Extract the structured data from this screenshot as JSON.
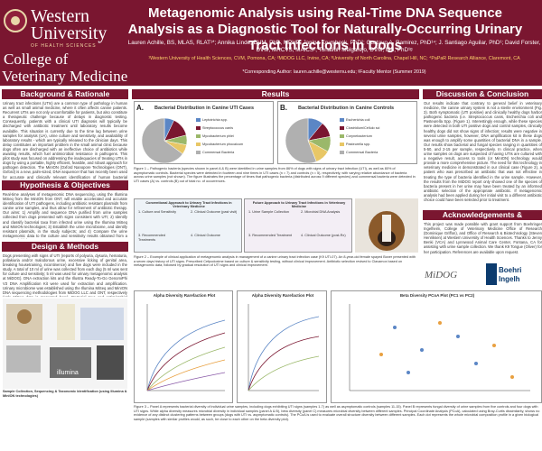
{
  "header": {
    "logo_line1": "Western",
    "logo_line2": "University",
    "logo_sub": "OF HEALTH SCIENCES",
    "college_line1": "College of",
    "college_line2": "Veterinary Medicine",
    "title": "Metagenomic Analysis using Real-Time DNA Sequence Analysis as a Diagnostic Tool for Naturally-Occurring Urinary Tract Infections in Dogs",
    "authors": "Lauren Achille, BS, MLAS, RLAT¹*; Annika Linde, DVM, PhD, MPHP; Janina Krumbeck, PhD²; Gustavo A. Ramirez, PhD¹⁴; J. Santiago Aguilar, PhD¹; David Forster, DVM, MRCVS, MAICS¹; Tonatiuh Melgarejo, DVM, MS, PhD¹ᵍ",
    "affiliations": "¹Western University of Health Sciences, CVM, Pomona, CA; ²MiDOG LLC, Irvine, CA; ³University of North Carolina, Chapel Hill, NC; ⁴PaPaR Research Alliance, Claremont, CA",
    "correspondence": "*Corresponding Author: lauren.achille@westernu.edu; ᵍFaculty Mentor (Summer 2019)"
  },
  "sections": {
    "background_title": "Background & Rationale",
    "background_text": "Urinary tract infections (UTIs) are a common type of pathology in human as well as small animal medicine, where it often affects canine patients. Recurrent UTIs are not only uncomfortable for patients, but also constitute a therapeutic challenge because of delays in diagnostic testing. Consequently, patients with a clinical UTI diagnosis will typically be discharged with antibiotic treatment until laboratory results become available. This situation is currently due to the time lag between urine samples for analysis (UA), urine culture and sensitivity, and availability of laboratory results - which are typically released to the clinician days. This delay constitutes an important problem in the small animal clinic because dogs often are discharged with an ineffective choice of antibiotics while awaiting results, which fuel antimicrobial resistance in pathogens. This pilot study was focused on addressing the inadequacies of treating UTIs in dogs by using a portable, highly efficient, feasible, and robust approach for pathogen detection. The MinION (Oxford Nanopore Technologies (ONT), Oxford) is a new, palm-sized, DNA sequencer that has recently been used for accurate and clinically relevant identification of human bacterial pathogens in less than four hours post urine collection. Consequently, we expect this technology can be translated for use in a veterinary medicine framework. We also used the Illumina MiSeq (MiDOG LLC) to compare microbial analyses data (the poster presents the Illumina MiSeq data only).",
    "hypothesis_title": "Hypothesis & Objectives",
    "hypothesis_text": "Real-time analyses of metagenomic DNA sequencing, using the Illumina MiSeq from the MinION from ONT, will enable accelerated and accurate identification of UTI pathogens, including antibiotic resistant plasmids from canine urine samples, and thus allow for refinement of antibiotic therapy. Our aims: 1) Amplify and sequence DNA purified from urine samples collected from dogs presented with signs consistent with UTI; 2) Identify and classify bacterial taxa from infected urine using the Illumina MiSeq and MinION technologies; 3) Establish the urine microbiome, and identify resistant plasmids, in the study subjects; and 4) Compare the urine metagenomic data to the culture and sensitivity results obtained from a commercial laboratory.",
    "design_title": "Design & Methods",
    "design_text": "Dogs presenting with signs of UTI (reports of polyuria, dysuria, hematuria, pollakiuria and/or malodorous urine, excessive licking of genital area, breaking housetraining, incontinence) and five dogs were included in the study. A total of 10 ml of urine was collected from each dog (5 ml was sent for culture and sensitivity; 5 ml was used for urinary metagenomic analysis at MiDOG). DNA extraction kits and the Illustra Ready-To-Go GenomiPhi V3 DNA Amplification Kit were used for extraction and amplification. Urinary microbiome was established using the Illumina MiSeq and MinION DNA sequencing methodologies from MiDOG LLC and ONT, respectively (only MiSeq data is presented here). Bacterial taxa and antimicrobial resistance plasmids were identified in each urine sample. Data originated from third generation DNA sequencing was also compared with urine culture and sensitivity test results from a commercial diagnostic laboratory.",
    "methods_caption": "Sample Collection, Sequencing & Taxonomic Identification (using Illumina & MinION technologies)",
    "results_title": "Results",
    "discussion_title": "Discussion & Conclusion",
    "discussion_text": "Our results indicate that contrary to general belief in veterinary medicine, the canine urinary system is not a sterile environment (Fig. 3). Both symptomatic (UTI positive) and clinically healthy dogs harbor pathogenic bacteria (i.e. Streptococcus canis, Escherichia coli and Pasteurella Spp. (Figure 1). Interestingly enough, while these species were detected in both UTI positive dogs and control samples, clinically healthy dogs did not show signs of infection; results were negative in several urine samples, however, DNA amplification kit in these dogs was enough to amplify some quantities of bacterial DNA in a sample. Our results show bacterial and fungal species ranging in quantities of 5-50, and 2-15 per sample, respectively. In clinical practice, when urine samples on dogs are suspected of having UTIs are cultured with a negative result, access to tools (or MinION) technology would provide a more comprehensive picture. The need for this technology in veterinary medicine is demonstrated in our clinical case (Figure 2), a patient who was prescribed an antibiotic that was not effective in treating the type of bacteria identified in the urine sample. However, the results from the MiDOG report only showed one of the species of bacteria present in her urine may have been treated by an informed antibiotic selection of the appropriate antibiotic. If metagenomic analysis had been applied during her initial visit to a different antibiotic choice could have been selected prior to treatment.",
    "ack_title": "Acknowledgements & References",
    "ack_text": "This project was made possible with grant support from Boehringer Ingelheim, College of Veterinary Medicine Office of Research (Dominique Griffon), and Office of Research & Biotechnology (Steven Henriksen) at Western University of Health Sciences. Thanks to Jenny Benki (VCA) and Lynnwood Animal Care Center, Fontana, CA for assisting with urine sample collection. We thank K9 Tongue (Oliver) for her participation. References are available upon request."
  },
  "results": {
    "panel_a_letter": "A.",
    "panel_a_title": "Bacterial Distribution in Canine UTI Cases",
    "panel_b_letter": "B.",
    "panel_b_title": "Bacterial Distribution in Canine Controls",
    "figure1_caption": "Figure 1 – Pathogenic bacteria (species shown in panel A & B) were identified in urine samples from 86% of dogs with signs of urinary tract infection (UTI), as well as 80% of asymptomatic controls. Bacterial species were detected in fourteen and nine times in UTI cases (n = 7) and controls (n = 5), respectively, with varying relative abundance of bacteria across urine samples (not shown). The figure illustrates the percentage of times that pathogenic bacteria (distributed across 9 different species) and commensal bacteria were detected in UTI cases (A) vs. controls (B) out of total no. of occurrences.",
    "flow_left_title": "Conventional Approach to Urinary Tract Infections in Veterinary Medicine",
    "flow_right_title": "Future Approach to Urinary Tract Infections in Veterinary Medicine",
    "flow_left_steps": [
      "1. Culture and Sensitivity",
      "2. Clinical Outcome (past visit)",
      "3. Recommended Treatments",
      "4. Clinical Outcome"
    ],
    "flow_right_steps": [
      "1. Urine Sample Collection",
      "2. Microbial DNA Analysis",
      "3. Recommended Treatment",
      "4. Clinical Outcome (post-Rx)"
    ],
    "figure2_caption": "Figure 2 – Example of clinical application of metagenomic analysis in management of a canine urinary tract infection case (K9 UTI-07). An 8-year-old female spayed Boxer presented with a seven days history of UTI signs. Prescribed Cefpodoxime based on culture & sensitivity testing, without clinical improvement. Antibiotic selection revised to Clavamox based on metagenomic data, followed by gradual resolution of UTI signs and clinical improvement.",
    "alpha_title_1": "Alpha Diversity Rarefaction Plot",
    "alpha_title_2": "Alpha Diversity Rarefaction Plot",
    "beta_title": "Beta Diversity PCoA Plot (PC1 vs PC2)",
    "figure3_caption": "Figure 3 – Panel A represents bacterial diversity of individual urine samples, including dogs exhibiting UTI signs (samples 1-7) as well as asymptomatic controls (samples 11-15). Panel B represents fungal diversity of urine samples from five controls and four dogs with UTI signs. While alpha diversity measures microbial diversity in individual samples (panel A & B), beta diversity (panel C) measures microbial diversity between different samples. Principal Coordinate Analysis (PCoA), calculated using Bray-Curtis dissimilarity, shows no evidence of any distinct clustering patterns between groups (dogs with UTI vs. asymptomatic controls). The PCoA is used to evaluate overall structure diversity between different samples. Each dot represents the whole microbial composition profile in a given biological sample (samples with similar profiles would, as such, be close to each other on the beta diversity plot)."
  },
  "chart_data": [
    {
      "type": "pie",
      "title": "Bacterial Distribution in Canine UTI Cases",
      "labels": [
        "Leptotrichia spp.",
        "Streptococcus canis",
        "Mycobacterium phlei",
        "Mycobacterium phocaicum",
        "Commensal Bacteria"
      ],
      "values": [
        7,
        14,
        7,
        7,
        65
      ],
      "colors": [
        "#5b86c5",
        "#7a1630",
        "#9bb86a",
        "#e8c766",
        "#b0b0b0"
      ]
    },
    {
      "type": "pie",
      "title": "Bacterial Distribution in Canine Controls",
      "labels": [
        "Escherichia coli",
        "Clostridium/Cellulo sci",
        "Corynebacterium",
        "Pasteurella spp.",
        "Commensal Bacteria"
      ],
      "values": [
        11,
        11,
        11,
        11,
        56
      ],
      "colors": [
        "#5b86c5",
        "#7a1630",
        "#9bb86a",
        "#e8c766",
        "#b0b0b0"
      ]
    }
  ],
  "acknowledgements_logos": {
    "midog": "MiDOG",
    "boehringer": "Boehringer Ingelheim"
  }
}
